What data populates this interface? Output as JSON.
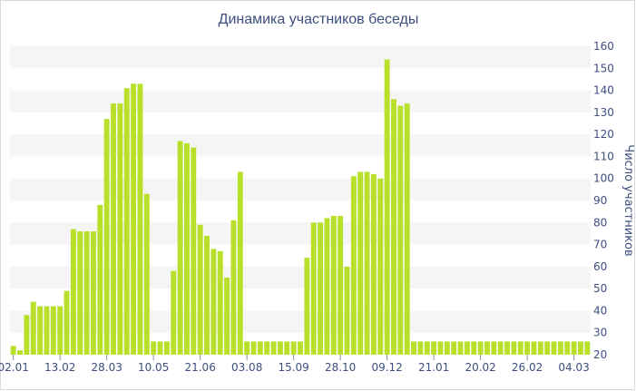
{
  "chart_data": {
    "type": "bar",
    "title": "Динамика участников беседы",
    "ylabel": "Число участников",
    "xlabel": "",
    "ylim": [
      20,
      160
    ],
    "y_ticks": [
      20,
      30,
      40,
      50,
      60,
      70,
      80,
      90,
      100,
      110,
      120,
      130,
      140,
      150,
      160
    ],
    "x_tick_labels": [
      "02.01",
      "13.02",
      "28.03",
      "10.05",
      "21.06",
      "03.08",
      "15.09",
      "28.10",
      "09.12",
      "21.01",
      "20.02",
      "26.02",
      "04.03"
    ],
    "x_tick_bar_index": [
      0,
      7,
      14,
      21,
      28,
      35,
      42,
      49,
      56,
      63,
      70,
      77,
      84
    ],
    "grid": "horizontal-bands",
    "legend": "none",
    "bar_color": "#b8e02a",
    "band_color": "#f5f5f5",
    "text_color": "#3e4f7f",
    "values": [
      24,
      22,
      38,
      44,
      42,
      42,
      42,
      42,
      49,
      77,
      76,
      76,
      76,
      88,
      127,
      134,
      134,
      141,
      143,
      143,
      93,
      26,
      26,
      26,
      58,
      117,
      116,
      114,
      79,
      74,
      68,
      67,
      55,
      81,
      103,
      26,
      26,
      26,
      26,
      26,
      26,
      26,
      26,
      26,
      64,
      80,
      80,
      82,
      83,
      83,
      60,
      101,
      103,
      103,
      102,
      100,
      154,
      136,
      133,
      134,
      26,
      26,
      26,
      26,
      26,
      26,
      26,
      26,
      26,
      26,
      26,
      26,
      26,
      26,
      26,
      26,
      26,
      26,
      26,
      26,
      26,
      26,
      26,
      26,
      26,
      26,
      26
    ]
  }
}
